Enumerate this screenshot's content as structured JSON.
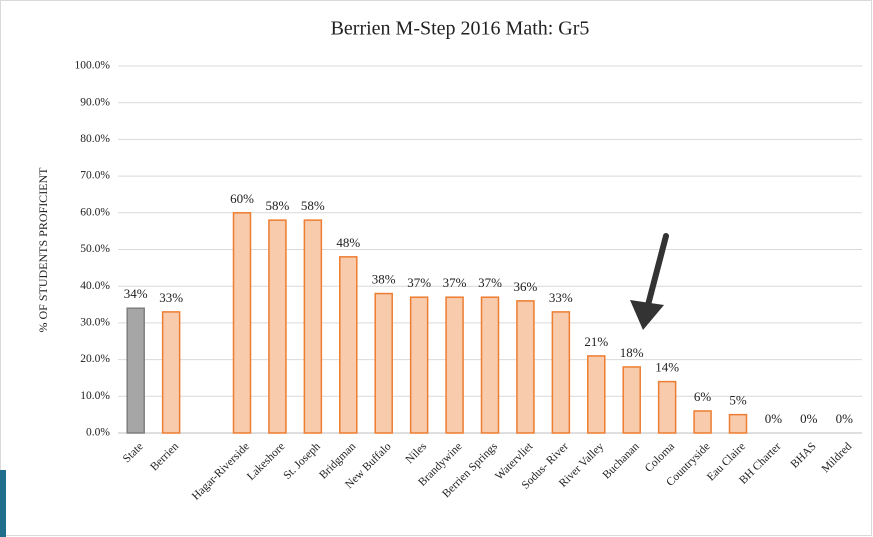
{
  "chart_data": {
    "type": "bar",
    "title": "Berrien M-Step 2016 Math: Gr5",
    "ylabel": "% OF STUDENTS PROFICIENT",
    "categories": [
      "State",
      "Berrien",
      null,
      "Hagar-Riverside",
      "Lakeshore",
      "St. Joseph",
      "Bridgman",
      "New Buffalo",
      "Niles",
      "Brandywine",
      "Berrien Springs",
      "Watervliet",
      "Sodus- River",
      "River Valley",
      "Buchanan",
      "Coloma",
      "Countryside",
      "Eau Claire",
      "BH Charter",
      "BHAS",
      "Mildred"
    ],
    "values": [
      34,
      33,
      null,
      60,
      58,
      58,
      48,
      38,
      37,
      37,
      37,
      36,
      33,
      21,
      18,
      14,
      6,
      5,
      0,
      0,
      0
    ],
    "value_labels": [
      "34%",
      "33%",
      null,
      "60%",
      "58%",
      "58%",
      "48%",
      "38%",
      "37%",
      "37%",
      "37%",
      "36%",
      "33%",
      "21%",
      "18%",
      "14%",
      "6%",
      "5%",
      "0%",
      "0%",
      "0%"
    ],
    "colors": [
      "#a6a6a6",
      "#f8cbad",
      null,
      "#f8cbad",
      "#f8cbad",
      "#f8cbad",
      "#f8cbad",
      "#f8cbad",
      "#f8cbad",
      "#f8cbad",
      "#f8cbad",
      "#f8cbad",
      "#f8cbad",
      "#f8cbad",
      "#f8cbad",
      "#f8cbad",
      "#f8cbad",
      "#f8cbad",
      "#f8cbad",
      "#f8cbad",
      "#f8cbad"
    ],
    "edge_colors": [
      "#7f7f7f",
      "#ed7d31",
      null,
      "#ed7d31",
      "#ed7d31",
      "#ed7d31",
      "#ed7d31",
      "#ed7d31",
      "#ed7d31",
      "#ed7d31",
      "#ed7d31",
      "#ed7d31",
      "#ed7d31",
      "#ed7d31",
      "#ed7d31",
      "#ed7d31",
      "#ed7d31",
      "#ed7d31",
      "#ed7d31",
      "#ed7d31",
      "#ed7d31"
    ],
    "ylim": [
      0,
      100
    ],
    "yticks": [
      {
        "value": 0,
        "label": "0.0%"
      },
      {
        "value": 10,
        "label": "10.0%"
      },
      {
        "value": 20,
        "label": "20.0%"
      },
      {
        "value": 30,
        "label": "30.0%"
      },
      {
        "value": 40,
        "label": "40.0%"
      },
      {
        "value": 50,
        "label": "50.0%"
      },
      {
        "value": 60,
        "label": "60.0%"
      },
      {
        "value": 70,
        "label": "70.0%"
      },
      {
        "value": 80,
        "label": "80.0%"
      },
      {
        "value": 90,
        "label": "90.0%"
      },
      {
        "value": 100,
        "label": "100.0%"
      }
    ],
    "grid": true
  }
}
